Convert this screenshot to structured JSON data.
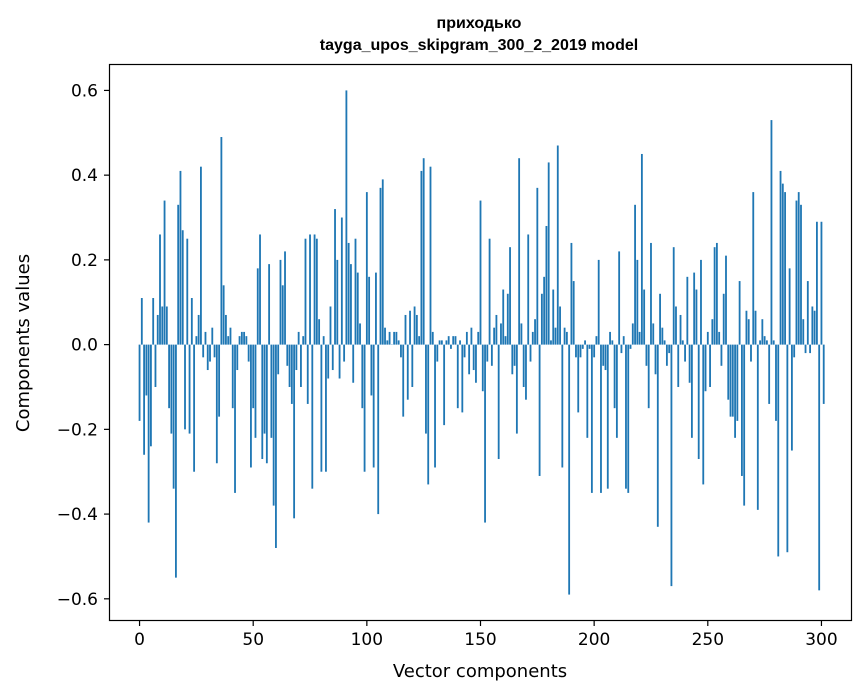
{
  "chart_data": {
    "type": "bar",
    "title": "приходько",
    "subtitle": "tayga_upos_skipgram_300_2_2019 model",
    "xlabel": "Vector components",
    "ylabel": "Components values",
    "xlim": [
      -13,
      313
    ],
    "ylim": [
      -0.65,
      0.66
    ],
    "x_ticks": [
      0,
      50,
      100,
      150,
      200,
      250,
      300
    ],
    "y_ticks": [
      -0.6,
      -0.4,
      -0.2,
      0.0,
      0.2,
      0.4,
      0.6
    ],
    "x_tick_labels": [
      "0",
      "50",
      "100",
      "150",
      "200",
      "250",
      "300"
    ],
    "y_tick_labels": [
      "−0.6",
      "−0.4",
      "−0.2",
      "0.0",
      "0.2",
      "0.4",
      "0.6"
    ],
    "bar_color": "#1f77b4",
    "grid": false,
    "legend": "none",
    "values": [
      -0.18,
      0.11,
      -0.26,
      -0.12,
      -0.42,
      -0.24,
      0.11,
      -0.1,
      0.07,
      0.26,
      0.09,
      0.34,
      0.09,
      -0.15,
      -0.21,
      -0.34,
      -0.55,
      0.33,
      0.41,
      0.27,
      -0.2,
      0.25,
      -0.21,
      0.11,
      -0.3,
      0.02,
      0.07,
      0.42,
      -0.03,
      0.03,
      -0.06,
      -0.04,
      0.04,
      -0.03,
      -0.28,
      -0.17,
      0.49,
      0.14,
      0.07,
      0.02,
      0.04,
      -0.15,
      -0.35,
      -0.06,
      0.02,
      0.03,
      0.03,
      0.02,
      -0.04,
      -0.29,
      -0.15,
      -0.22,
      0.18,
      0.26,
      -0.27,
      -0.21,
      -0.28,
      0.19,
      -0.22,
      -0.38,
      -0.48,
      -0.07,
      0.2,
      0.14,
      0.22,
      -0.05,
      -0.1,
      -0.14,
      -0.41,
      -0.06,
      0.03,
      -0.1,
      0.02,
      0.25,
      -0.14,
      0.26,
      -0.34,
      0.26,
      0.25,
      0.06,
      -0.3,
      0.02,
      -0.3,
      -0.08,
      0.09,
      -0.06,
      0.32,
      0.2,
      -0.08,
      0.3,
      -0.04,
      0.6,
      0.24,
      0.19,
      -0.09,
      0.25,
      0.17,
      0.05,
      -0.15,
      -0.3,
      0.36,
      0.16,
      -0.12,
      -0.29,
      0.17,
      -0.4,
      0.37,
      0.39,
      0.04,
      0.01,
      0.03,
      0.0,
      0.03,
      0.03,
      0.01,
      -0.03,
      -0.17,
      0.07,
      -0.13,
      0.08,
      -0.1,
      0.09,
      0.07,
      0.02,
      0.41,
      0.44,
      -0.21,
      -0.33,
      0.42,
      0.03,
      -0.29,
      -0.04,
      0.01,
      0.01,
      -0.19,
      0.01,
      0.02,
      -0.01,
      0.02,
      0.02,
      -0.15,
      0.01,
      -0.16,
      -0.03,
      0.03,
      -0.07,
      0.04,
      -0.06,
      -0.09,
      0.03,
      0.34,
      -0.11,
      -0.42,
      -0.04,
      0.25,
      -0.05,
      0.04,
      0.07,
      -0.27,
      0.05,
      0.13,
      0.02,
      0.12,
      0.23,
      -0.07,
      -0.05,
      -0.21,
      0.44,
      0.05,
      -0.1,
      -0.13,
      0.26,
      -0.04,
      0.03,
      0.06,
      0.37,
      -0.31,
      0.12,
      0.16,
      0.28,
      0.43,
      0.01,
      0.13,
      0.04,
      0.47,
      0.09,
      -0.29,
      0.04,
      0.03,
      -0.59,
      0.24,
      0.15,
      -0.03,
      -0.16,
      -0.03,
      -0.01,
      0.01,
      -0.22,
      -0.01,
      -0.35,
      -0.03,
      0.02,
      0.2,
      -0.35,
      -0.05,
      -0.06,
      -0.34,
      0.03,
      0.01,
      -0.15,
      -0.22,
      0.22,
      -0.02,
      0.02,
      -0.34,
      -0.35,
      -0.01,
      0.05,
      0.33,
      0.2,
      0.03,
      0.45,
      0.13,
      -0.05,
      -0.15,
      0.24,
      0.05,
      -0.07,
      -0.43,
      0.12,
      0.04,
      0.01,
      -0.05,
      -0.02,
      -0.57,
      0.23,
      0.09,
      -0.1,
      0.07,
      0.01,
      -0.04,
      0.16,
      -0.09,
      -0.22,
      0.17,
      0.13,
      -0.27,
      0.2,
      -0.33,
      -0.11,
      0.03,
      -0.1,
      0.06,
      0.23,
      0.24,
      0.03,
      -0.05,
      0.12,
      0.21,
      -0.13,
      -0.17,
      -0.17,
      -0.22,
      -0.18,
      0.15,
      -0.31,
      -0.38,
      0.08,
      0.06,
      -0.04,
      0.36,
      0.08,
      -0.39,
      0.01,
      0.06,
      0.02,
      0.01,
      -0.14,
      0.53,
      0.01,
      -0.18,
      -0.5,
      0.41,
      0.38,
      0.36,
      -0.49,
      0.18,
      -0.25,
      -0.03,
      0.34,
      0.36,
      0.33,
      0.06,
      -0.02,
      0.15,
      -0.02,
      0.09,
      0.08,
      0.29,
      -0.58,
      0.29,
      -0.14
    ]
  }
}
